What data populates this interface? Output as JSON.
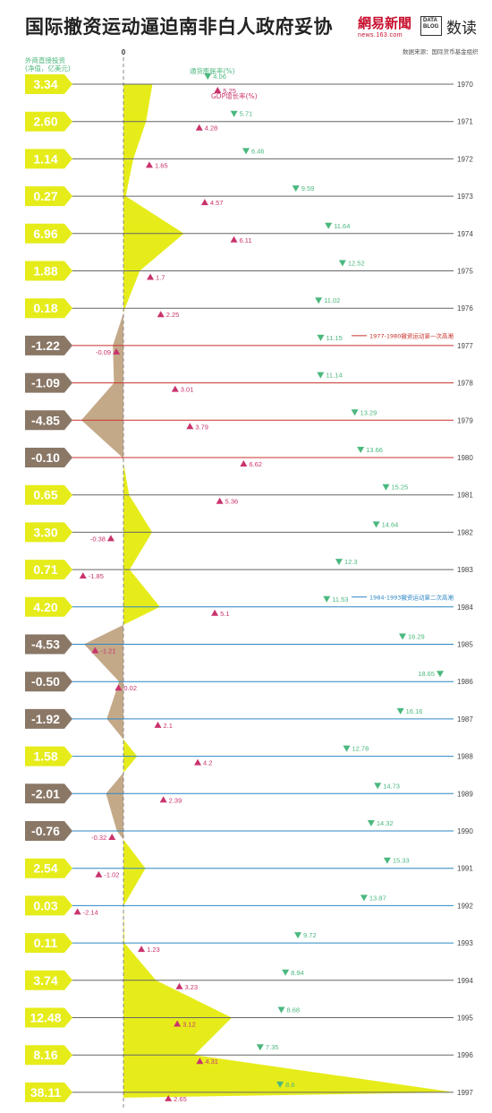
{
  "header": {
    "title": "国际撤资运动逼迫南非白人政府妥协",
    "logo_netease": "網易新聞",
    "logo_netease_url": "news.163.com",
    "logo_datablog_line1": "DATA",
    "logo_datablog_line2": "BLOG",
    "logo_shudu": "数读",
    "source": "数据来源：国际货币基金组织"
  },
  "colors": {
    "positive_fill": "#e6ec1a",
    "negative_fill": "#c4a989",
    "label_negative_bg": "#8a7766",
    "inflation": "#4bb87e",
    "gdp": "#c9336d",
    "line_default": "#666666",
    "line_period1": "#c8322c",
    "line_period2": "#2d86c4"
  },
  "chart_data": {
    "type": "line",
    "axis_zero_label": "0",
    "fdi_label_line1": "外商直接投资",
    "fdi_label_line2": "(净值，亿美元)",
    "inflation_legend": "通货膨胀率(%)",
    "gdp_legend": "GDP增长率(%)",
    "annotations": [
      {
        "text": "1977-1980撤资运动第一次高潮",
        "years": [
          1977,
          1980
        ]
      },
      {
        "text": "1984-1993撤资运动第二次高潮",
        "years": [
          1984,
          1993
        ]
      }
    ],
    "years": [
      1970,
      1971,
      1972,
      1973,
      1974,
      1975,
      1976,
      1977,
      1978,
      1979,
      1980,
      1981,
      1982,
      1983,
      1984,
      1985,
      1986,
      1987,
      1988,
      1989,
      1990,
      1991,
      1992,
      1993,
      1994,
      1995,
      1996,
      1997
    ],
    "fdi_labels": [
      "3.34",
      "2.60",
      "1.14",
      "0.27",
      "6.96",
      "1.88",
      "0.18",
      "-1.22",
      "-1.09",
      "-4.85",
      "-0.10",
      "0.65",
      "3.30",
      "0.71",
      "4.20",
      "-4.53",
      "-0.50",
      "-1.92",
      "1.58",
      "-2.01",
      "-0.76",
      "2.54",
      "0.03",
      "0.11",
      "3.74",
      "12.48",
      "8.16",
      "38.11"
    ],
    "series": [
      {
        "name": "外商直接投资(净值，亿美元)",
        "values": [
          3.34,
          2.6,
          1.14,
          0.27,
          6.96,
          1.88,
          0.18,
          -1.22,
          -1.09,
          -4.85,
          -0.1,
          0.65,
          3.3,
          0.71,
          4.2,
          -4.53,
          -0.5,
          -1.92,
          1.58,
          -2.01,
          -0.76,
          2.54,
          0.03,
          0.11,
          3.74,
          12.48,
          8.16,
          38.11
        ]
      },
      {
        "name": "通货膨胀率(%)",
        "values": [
          4.06,
          5.71,
          6.46,
          9.59,
          11.64,
          12.52,
          11.02,
          11.15,
          11.14,
          13.29,
          13.66,
          15.25,
          14.64,
          12.3,
          11.53,
          16.29,
          18.65,
          16.16,
          12.78,
          14.73,
          14.32,
          15.33,
          13.87,
          9.72,
          8.94,
          8.68,
          7.35,
          8.6
        ]
      },
      {
        "name": "GDP增长率(%)",
        "values": [
          5.25,
          4.28,
          1.65,
          4.57,
          6.11,
          1.7,
          2.25,
          -0.09,
          3.01,
          3.79,
          6.62,
          5.36,
          -0.38,
          -1.85,
          5.1,
          -1.21,
          0.02,
          2.1,
          4.2,
          2.39,
          -0.32,
          -1.02,
          -2.14,
          1.23,
          3.23,
          3.12,
          4.31,
          2.65
        ]
      }
    ]
  }
}
